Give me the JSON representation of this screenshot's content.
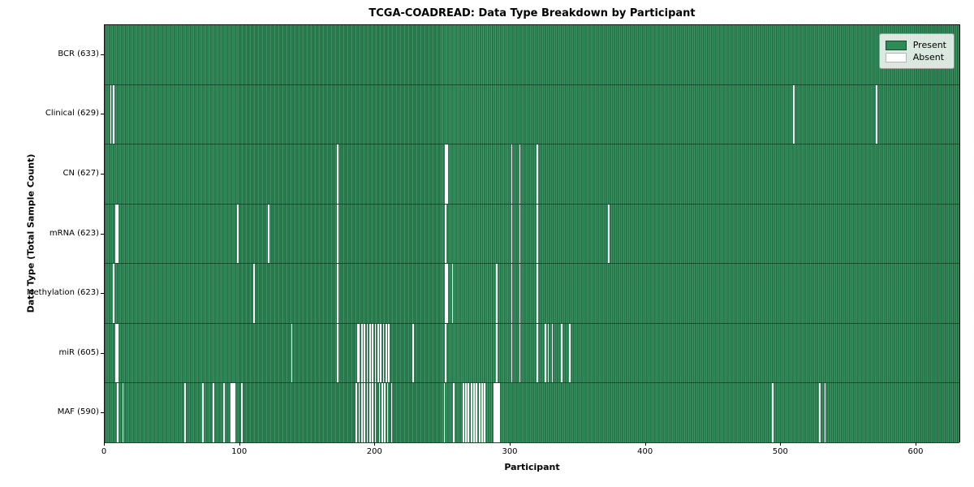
{
  "title": "TCGA-COADREAD: Data Type Breakdown by Participant",
  "x_axis_label": "Participant",
  "y_axis_label": "Data Type (Total Sample Count)",
  "legend": {
    "present_label": "Present",
    "absent_label": "Absent"
  },
  "colors": {
    "present": "#2e8b57",
    "present_edge_dark": "#1f5d3b",
    "present_highlight": "#429a68",
    "absent": "#ffffff",
    "plot_border": "#111111",
    "legend_background": "rgba(255,255,255,0.82)"
  },
  "chart_data": {
    "type": "heatmap",
    "title": "TCGA-COADREAD: Data Type Breakdown by Participant",
    "xlabel": "Participant",
    "ylabel": "Data Type (Total Sample Count)",
    "legend_entries": [
      "Present",
      "Absent"
    ],
    "legend_position": "upper right",
    "grid": false,
    "x_range": [
      0,
      633
    ],
    "x_ticks": [
      0,
      100,
      200,
      300,
      400,
      500,
      600
    ],
    "total_participants": 633,
    "cell_semantics": "green = data type present for participant, white = absent",
    "rows": [
      {
        "label": "BCR (633)",
        "data_type": "BCR",
        "sample_count": 633,
        "absent_participants": []
      },
      {
        "label": "Clinical (629)",
        "data_type": "Clinical",
        "sample_count": 629,
        "absent_participants": [
          4,
          6,
          510,
          571
        ]
      },
      {
        "label": "CN (627)",
        "data_type": "CN",
        "sample_count": 627,
        "absent_participants": [
          172,
          252,
          253,
          301,
          307,
          320
        ]
      },
      {
        "label": "mRNA (623)",
        "data_type": "mRNA",
        "sample_count": 623,
        "absent_participants": [
          8,
          9,
          98,
          121,
          172,
          252,
          301,
          307,
          320,
          373
        ]
      },
      {
        "label": "Methylation (623)",
        "data_type": "Methylation",
        "sample_count": 623,
        "absent_participants": [
          6,
          110,
          172,
          252,
          253,
          257,
          290,
          301,
          307,
          320
        ]
      },
      {
        "label": "miR (605)",
        "data_type": "miR",
        "sample_count": 605,
        "absent_participants": [
          8,
          9,
          138,
          172,
          187,
          188,
          190,
          192,
          194,
          196,
          198,
          200,
          202,
          204,
          206,
          208,
          210,
          228,
          252,
          290,
          301,
          307,
          320,
          326,
          328,
          331,
          338,
          344
        ]
      },
      {
        "label": "MAF (590)",
        "data_type": "MAF",
        "sample_count": 590,
        "absent_participants": [
          9,
          13,
          59,
          72,
          80,
          88,
          93,
          94,
          95,
          96,
          101,
          186,
          188,
          190,
          192,
          194,
          196,
          198,
          200,
          203,
          205,
          207,
          209,
          212,
          251,
          258,
          265,
          267,
          269,
          271,
          273,
          275,
          277,
          279,
          281,
          288,
          289,
          290,
          291,
          292,
          494,
          529,
          533
        ]
      }
    ]
  }
}
